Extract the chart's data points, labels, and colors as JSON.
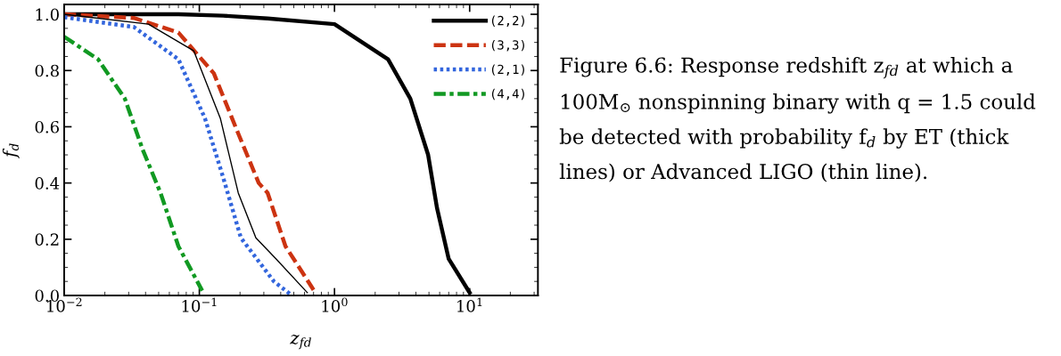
{
  "chart_data": {
    "type": "line",
    "xlabel": "z$_{fd}$",
    "ylabel": "f$_{d}$",
    "log": "x",
    "xlim": [
      0.01,
      32
    ],
    "ylim": [
      0,
      1.035
    ],
    "xticks": [
      {
        "value": 0.01,
        "label": "10$^{−2}$"
      },
      {
        "value": 0.1,
        "label": "10$^{−1}$"
      },
      {
        "value": 1,
        "label": "10$^{0}$"
      },
      {
        "value": 10,
        "label": "10$^{1}$"
      }
    ],
    "yticks": [
      {
        "value": 0,
        "label": "0.0"
      },
      {
        "value": 0.2,
        "label": "0.2"
      },
      {
        "value": 0.4,
        "label": "0.4"
      },
      {
        "value": 0.6,
        "label": "0.6"
      },
      {
        "value": 0.8,
        "label": "0.8"
      },
      {
        "value": 1,
        "label": "1.0"
      }
    ],
    "legend": "top right",
    "marker": "none",
    "grid": false,
    "series": [
      {
        "name": "(2,2)",
        "color": "#000000",
        "line_style": "solid",
        "x": [
          0.01,
          0.07,
          0.15,
          0.32,
          1.0,
          2.49,
          3.64,
          4.93,
          5.74,
          7.0,
          10.0
        ],
        "values": [
          1.0,
          1.0,
          0.995,
          0.985,
          0.965,
          0.84,
          0.7,
          0.5,
          0.31,
          0.13,
          0.01
        ]
      },
      {
        "name": "(3,3)",
        "color": "#cc3311",
        "line_style": "dashed",
        "x": [
          0.01,
          0.0327,
          0.07,
          0.128,
          0.194,
          0.275,
          0.32,
          0.434,
          0.7
        ],
        "values": [
          1.0,
          0.987,
          0.935,
          0.79,
          0.576,
          0.4,
          0.365,
          0.175,
          0.02
        ]
      },
      {
        "name": "(2,1)",
        "color": "#3366dd",
        "line_style": "dotted",
        "x": [
          0.01,
          0.0327,
          0.07,
          0.11,
          0.15,
          0.203,
          0.356,
          0.47
        ],
        "values": [
          0.99,
          0.955,
          0.84,
          0.63,
          0.42,
          0.205,
          0.05,
          0.005
        ]
      },
      {
        "name": "(4,4)",
        "color": "#119922",
        "line_style": "dashdot",
        "x": [
          0.01,
          0.0178,
          0.0281,
          0.038,
          0.0516,
          0.07,
          0.105
        ],
        "values": [
          0.92,
          0.84,
          0.7,
          0.52,
          0.365,
          0.175,
          0.017
        ]
      },
      {
        "color": "#000000",
        "line_style": "solid",
        "x": [
          0.01,
          0.042,
          0.091,
          0.143,
          0.194,
          0.262,
          0.37,
          0.63
        ],
        "values": [
          1.0,
          0.965,
          0.87,
          0.63,
          0.365,
          0.205,
          0.13,
          0.01
        ]
      }
    ],
    "annotations": [
      "Figure 6.6: Response redshift z$_{fd}$ at which a 100M$_{⊙}$ nonspinning binary with q = 1.5 could be detected with probability f$_{d}$ by ET (thick lines) or Advanced LIGO (thin line)."
    ]
  }
}
